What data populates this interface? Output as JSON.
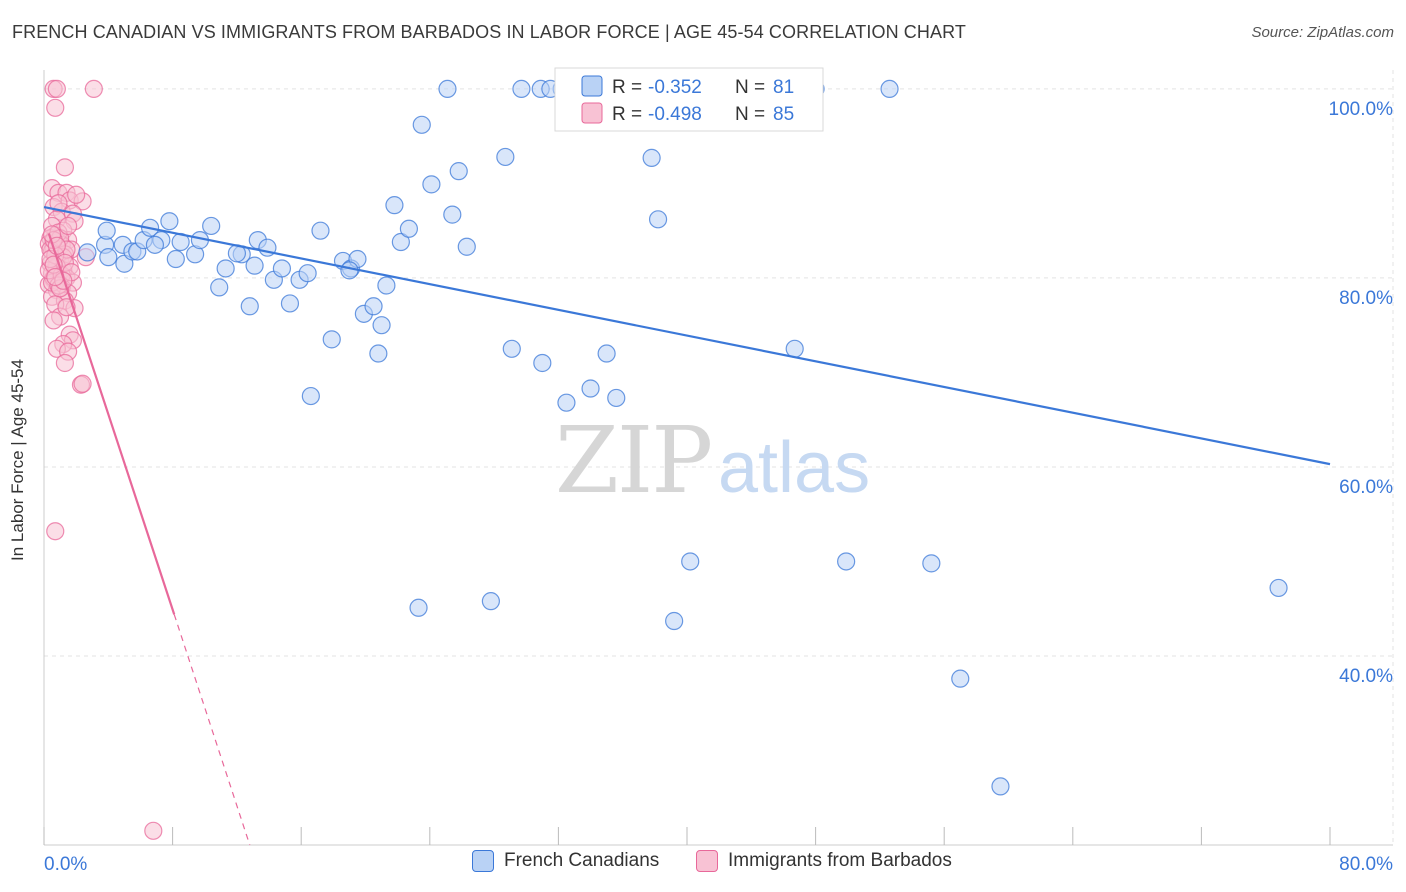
{
  "title": "FRENCH CANADIAN VS IMMIGRANTS FROM BARBADOS IN LABOR FORCE | AGE 45-54 CORRELATION CHART",
  "source": "Source: ZipAtlas.com",
  "watermark": {
    "zip": "ZIP",
    "atlas": "atlas"
  },
  "colors": {
    "blue": "#3b78d8",
    "blue_fill": "#b9d2f5",
    "pink": "#e8689a",
    "pink_fill": "#f8c2d4",
    "tick_text": "#3b78d8",
    "grid": "#e3e3e3"
  },
  "chart_data": {
    "type": "scatter",
    "title": "FRENCH CANADIAN VS IMMIGRANTS FROM BARBADOS IN LABOR FORCE | AGE 45-54 CORRELATION CHART",
    "xlabel": "",
    "ylabel": "In Labor Force | Age 45-54",
    "xlim": [
      0,
      80
    ],
    "ylim": [
      20,
      102
    ],
    "x_tick_labels": [
      "0.0%",
      "80.0%"
    ],
    "y_ticks": [
      40,
      60,
      80,
      100
    ],
    "y_tick_labels": [
      "40.0%",
      "60.0%",
      "80.0%",
      "100.0%"
    ],
    "grid": true,
    "legend_placement": "top-center",
    "stats": [
      {
        "r_label": "R = ",
        "r_value": "-0.352",
        "n_label": "N = ",
        "n_value": "81"
      },
      {
        "r_label": "R = ",
        "r_value": "-0.498",
        "n_label": "N = ",
        "n_value": "85"
      }
    ],
    "series": [
      {
        "name": "French Canadians",
        "color": "blue",
        "trend": {
          "x0": 0.0,
          "y0": 87.5,
          "x1": 80.0,
          "y1": 60.3
        },
        "points": [
          [
            2.7,
            82.7
          ],
          [
            3.8,
            83.5
          ],
          [
            3.9,
            85.0
          ],
          [
            4.0,
            82.2
          ],
          [
            4.9,
            83.5
          ],
          [
            5.0,
            81.5
          ],
          [
            5.5,
            82.8
          ],
          [
            5.8,
            82.8
          ],
          [
            6.2,
            84.0
          ],
          [
            6.6,
            85.3
          ],
          [
            7.3,
            84.0
          ],
          [
            7.8,
            86.0
          ],
          [
            8.2,
            82.0
          ],
          [
            8.5,
            83.8
          ],
          [
            9.4,
            82.5
          ],
          [
            9.7,
            84.0
          ],
          [
            10.4,
            85.5
          ],
          [
            10.9,
            79.0
          ],
          [
            11.3,
            81.0
          ],
          [
            12.3,
            82.5
          ],
          [
            12.8,
            77.0
          ],
          [
            13.1,
            81.3
          ],
          [
            13.3,
            84.0
          ],
          [
            13.9,
            83.2
          ],
          [
            14.3,
            79.8
          ],
          [
            14.8,
            81.0
          ],
          [
            15.3,
            77.3
          ],
          [
            15.9,
            79.8
          ],
          [
            16.4,
            80.5
          ],
          [
            16.6,
            67.5
          ],
          [
            17.2,
            85.0
          ],
          [
            17.9,
            73.5
          ],
          [
            18.6,
            81.8
          ],
          [
            19.1,
            81.0
          ],
          [
            19.5,
            82.0
          ],
          [
            19.9,
            76.2
          ],
          [
            20.5,
            77.0
          ],
          [
            20.8,
            72.0
          ],
          [
            21.3,
            79.2
          ],
          [
            21.8,
            87.7
          ],
          [
            22.2,
            83.8
          ],
          [
            22.7,
            85.2
          ],
          [
            23.3,
            45.1
          ],
          [
            23.5,
            96.2
          ],
          [
            24.1,
            89.9
          ],
          [
            25.1,
            100.0
          ],
          [
            25.4,
            86.7
          ],
          [
            25.8,
            91.3
          ],
          [
            26.3,
            83.3
          ],
          [
            27.8,
            45.8
          ],
          [
            28.7,
            92.8
          ],
          [
            29.1,
            72.5
          ],
          [
            29.7,
            100.0
          ],
          [
            30.9,
            100.0
          ],
          [
            31.0,
            71.0
          ],
          [
            32.2,
            100.0
          ],
          [
            32.5,
            66.8
          ],
          [
            33.3,
            100.0
          ],
          [
            34.0,
            68.3
          ],
          [
            35.0,
            72.0
          ],
          [
            35.6,
            67.3
          ],
          [
            36.7,
            100.0
          ],
          [
            37.8,
            92.7
          ],
          [
            38.2,
            86.2
          ],
          [
            39.2,
            43.7
          ],
          [
            40.2,
            50.0
          ],
          [
            44.3,
            100.0
          ],
          [
            46.7,
            72.5
          ],
          [
            48.0,
            100.0
          ],
          [
            49.9,
            50.0
          ],
          [
            52.6,
            100.0
          ],
          [
            55.2,
            49.8
          ],
          [
            57.0,
            37.6
          ],
          [
            59.5,
            26.2
          ],
          [
            76.8,
            47.2
          ],
          [
            36.5,
            100.0
          ],
          [
            31.5,
            100.0
          ],
          [
            19.0,
            80.8
          ],
          [
            12.0,
            82.6
          ],
          [
            6.9,
            83.5
          ],
          [
            21.0,
            75.0
          ]
        ]
      },
      {
        "name": "Immigrants from Barbados",
        "color": "pink",
        "trend": {
          "x0": 0.3,
          "y0": 84.7,
          "x1": 8.1,
          "y1": 44.4,
          "dash_to_x": 12.8,
          "dash_to_y": 20.0
        },
        "points": [
          [
            0.6,
            100.0
          ],
          [
            0.7,
            98.0
          ],
          [
            0.8,
            100.0
          ],
          [
            3.1,
            100.0
          ],
          [
            1.3,
            91.7
          ],
          [
            0.5,
            89.5
          ],
          [
            0.9,
            89.0
          ],
          [
            1.4,
            89.0
          ],
          [
            1.6,
            88.2
          ],
          [
            2.4,
            88.1
          ],
          [
            0.6,
            87.5
          ],
          [
            1.1,
            87.0
          ],
          [
            1.8,
            86.8
          ],
          [
            0.8,
            86.2
          ],
          [
            1.9,
            86.0
          ],
          [
            0.5,
            85.5
          ],
          [
            1.2,
            85.0
          ],
          [
            0.7,
            84.5
          ],
          [
            0.4,
            84.2
          ],
          [
            1.5,
            84.0
          ],
          [
            0.9,
            83.8
          ],
          [
            0.3,
            83.6
          ],
          [
            1.1,
            83.5
          ],
          [
            0.6,
            83.2
          ],
          [
            1.7,
            83.0
          ],
          [
            0.5,
            82.8
          ],
          [
            1.3,
            82.5
          ],
          [
            2.6,
            82.2
          ],
          [
            0.8,
            82.0
          ],
          [
            1.0,
            81.8
          ],
          [
            0.4,
            81.5
          ],
          [
            1.6,
            81.2
          ],
          [
            0.7,
            81.0
          ],
          [
            1.2,
            80.8
          ],
          [
            0.5,
            80.5
          ],
          [
            0.9,
            80.2
          ],
          [
            1.4,
            80.0
          ],
          [
            0.6,
            79.8
          ],
          [
            1.8,
            79.5
          ],
          [
            0.3,
            79.3
          ],
          [
            1.1,
            79.0
          ],
          [
            0.8,
            78.7
          ],
          [
            1.5,
            78.4
          ],
          [
            0.5,
            78.0
          ],
          [
            1.3,
            77.6
          ],
          [
            0.7,
            77.2
          ],
          [
            1.9,
            76.8
          ],
          [
            1.0,
            75.9
          ],
          [
            0.6,
            75.5
          ],
          [
            1.6,
            74.0
          ],
          [
            1.8,
            73.4
          ],
          [
            1.2,
            73.0
          ],
          [
            0.8,
            72.5
          ],
          [
            1.5,
            72.2
          ],
          [
            1.3,
            71.0
          ],
          [
            2.3,
            68.7
          ],
          [
            2.4,
            68.8
          ],
          [
            0.7,
            53.2
          ],
          [
            6.8,
            21.5
          ],
          [
            0.4,
            83.0
          ],
          [
            0.9,
            84.8
          ],
          [
            0.6,
            80.0
          ],
          [
            1.2,
            82.2
          ],
          [
            0.5,
            79.5
          ],
          [
            1.0,
            84.2
          ],
          [
            0.8,
            81.2
          ],
          [
            1.4,
            83.0
          ],
          [
            0.3,
            80.8
          ],
          [
            0.7,
            82.4
          ],
          [
            1.1,
            80.3
          ],
          [
            0.6,
            84.0
          ],
          [
            0.9,
            79.2
          ],
          [
            1.3,
            81.6
          ],
          [
            0.4,
            82.0
          ],
          [
            1.0,
            78.9
          ],
          [
            0.5,
            84.6
          ],
          [
            1.7,
            80.6
          ],
          [
            0.8,
            83.4
          ],
          [
            1.2,
            79.7
          ],
          [
            0.6,
            81.4
          ],
          [
            1.5,
            85.5
          ],
          [
            0.9,
            87.9
          ],
          [
            2.0,
            88.8
          ],
          [
            1.4,
            76.9
          ],
          [
            0.7,
            80.1
          ]
        ]
      }
    ]
  }
}
